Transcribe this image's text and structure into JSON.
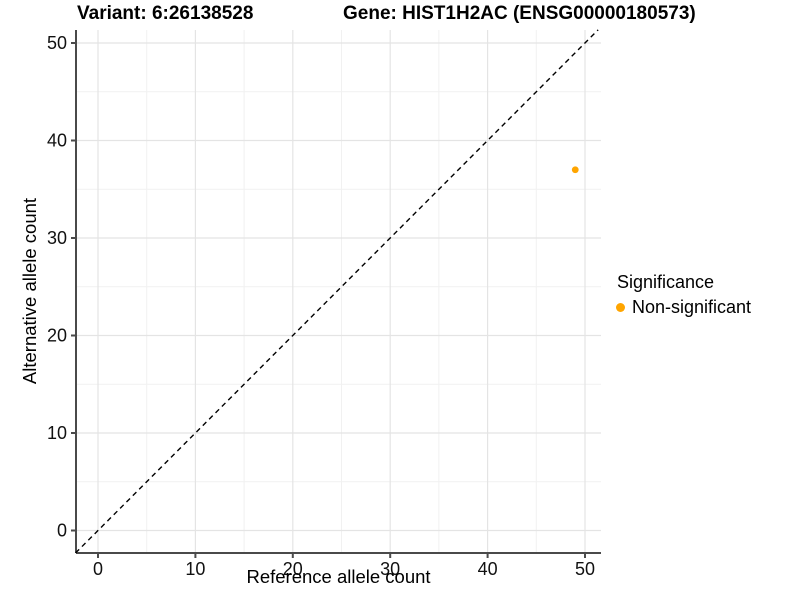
{
  "title": {
    "variant": "Variant: 6:26138528",
    "gene": "Gene: HIST1H2AC (ENSG00000180573)"
  },
  "axes": {
    "x_label": "Reference allele count",
    "y_label": "Alternative allele count"
  },
  "legend": {
    "title": "Significance",
    "items": [
      {
        "label": "Non-significant",
        "color": "#FFA500"
      }
    ]
  },
  "chart_data": {
    "type": "scatter",
    "title": "Variant: 6:26138528    Gene: HIST1H2AC (ENSG00000180573)",
    "xlabel": "Reference allele count",
    "ylabel": "Alternative allele count",
    "xlim": [
      -2.3,
      51.6
    ],
    "ylim": [
      -2.3,
      51.35
    ],
    "x_ticks": [
      0,
      10,
      20,
      30,
      40,
      50
    ],
    "y_ticks": [
      0,
      10,
      20,
      30,
      40,
      50
    ],
    "x_minor_ticks": [
      5,
      15,
      25,
      35,
      45
    ],
    "y_minor_ticks": [
      5,
      15,
      25,
      35,
      45
    ],
    "grid": "major+minor",
    "legend_position": "right",
    "reference_line": {
      "type": "identity y=x",
      "style": "dashed",
      "color": "#000000"
    },
    "series": [
      {
        "name": "Non-significant",
        "color": "#FFA500",
        "points": [
          {
            "x": 49,
            "y": 37
          }
        ]
      }
    ]
  },
  "style": {
    "accent_orange": "#FFA500",
    "grid_major": "#E4E4E4",
    "grid_minor": "#F1F1F1",
    "axis_line": "#4A4A4A",
    "text": "#111111"
  }
}
